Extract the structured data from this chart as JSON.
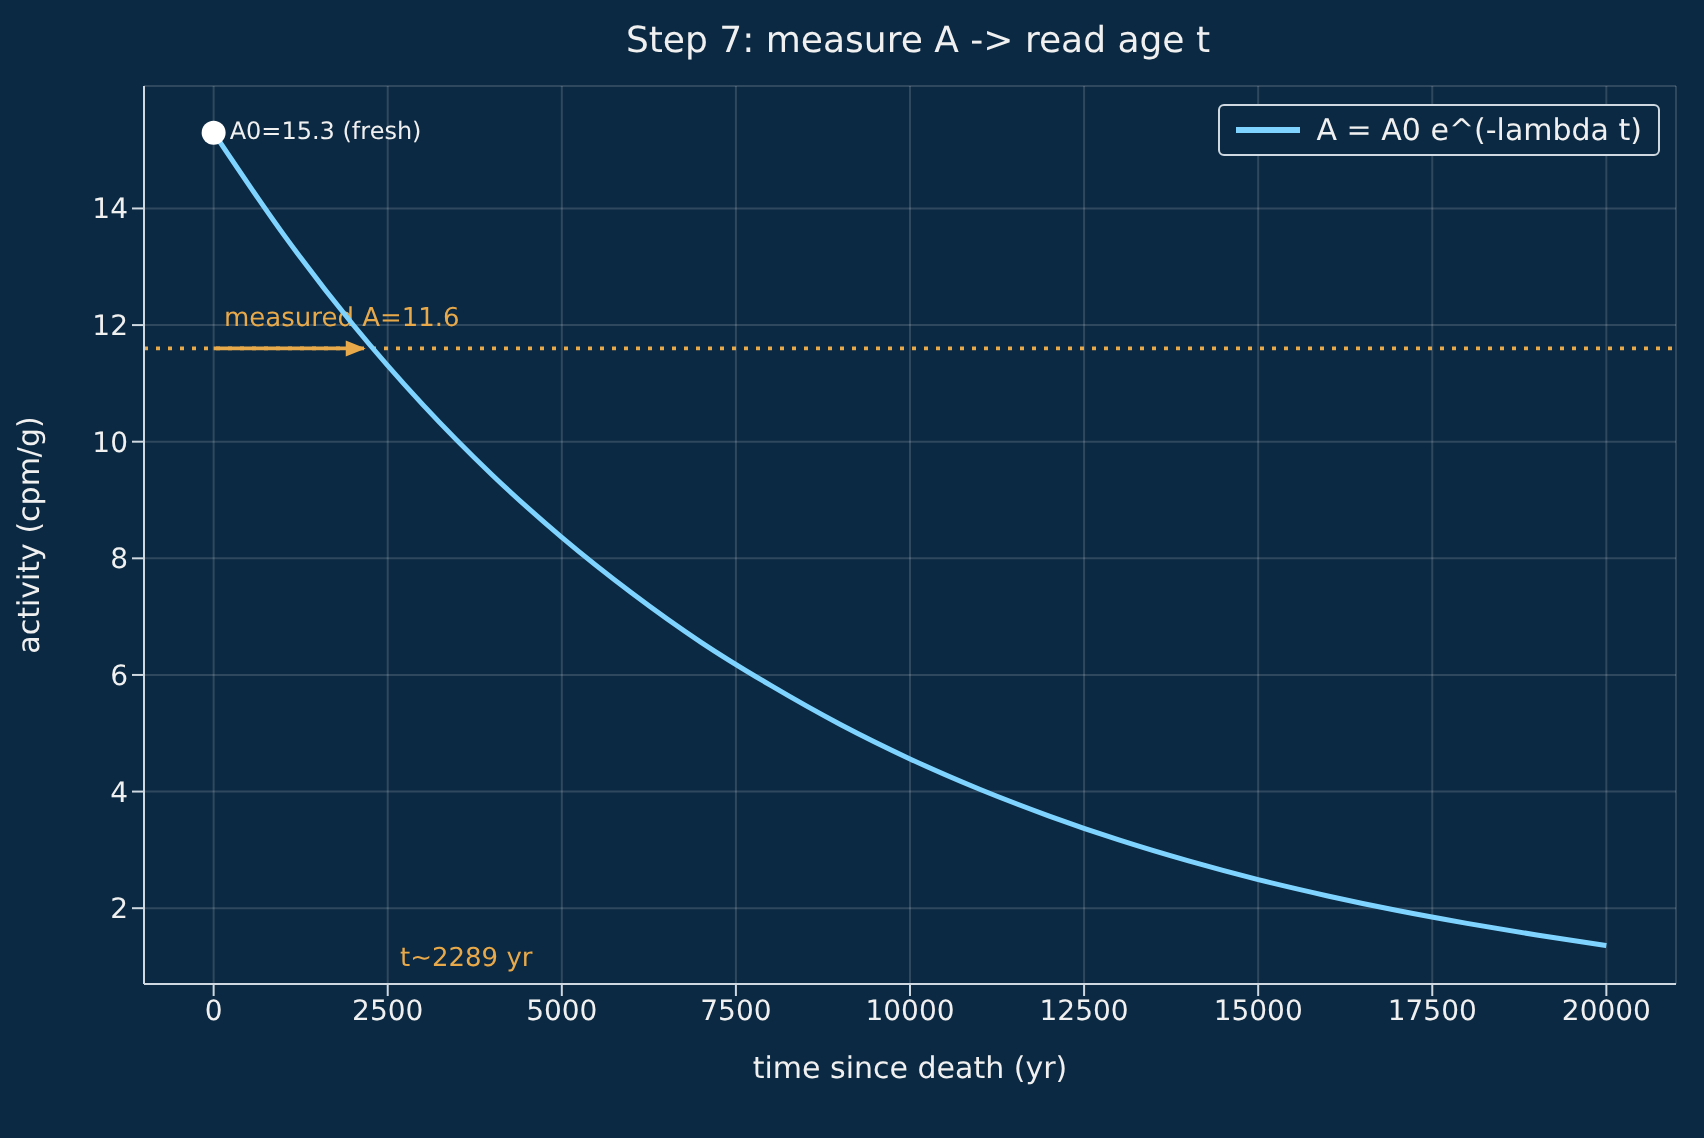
{
  "chart_data": {
    "type": "line",
    "title": "Step 7: measure A -> read age t",
    "xlabel": "time since death (yr)",
    "ylabel": "activity (cpm/g)",
    "series": [
      {
        "name": "A = A0 e^(-lambda t)",
        "color": "#7fd4ff",
        "x": [
          0,
          1000,
          2000,
          3000,
          4000,
          5000,
          6000,
          7000,
          8000,
          9000,
          10000,
          11000,
          12000,
          13000,
          14000,
          15000,
          16000,
          17000,
          18000,
          19000,
          20000
        ],
        "values": [
          15.3,
          13.56,
          12.01,
          10.64,
          9.43,
          8.36,
          7.41,
          6.56,
          5.82,
          5.15,
          4.56,
          4.04,
          3.58,
          3.17,
          2.81,
          2.49,
          2.21,
          1.96,
          1.74,
          1.54,
          1.36
        ]
      },
      {
        "type": "scatter",
        "color": "#ffffff",
        "x": [
          0
        ],
        "values": [
          15.3
        ],
        "marker": "circle"
      }
    ],
    "xlim": [
      -1000,
      21000
    ],
    "xticks": [
      0,
      2500,
      5000,
      7500,
      10000,
      12500,
      15000,
      17500,
      20000
    ],
    "ylim": [
      0.7,
      16.1
    ],
    "yticks": [
      2,
      4,
      6,
      8,
      10,
      12,
      14
    ],
    "ref_lines": [
      {
        "axis": "y",
        "value": 11.6,
        "color": "#e8a94a",
        "line_style": "dotted",
        "label": "measured A=11.6"
      }
    ],
    "annotations": [
      {
        "text": "A0=15.3 (fresh)",
        "x": 0,
        "y": 15.3
      },
      "t~2289 yr"
    ],
    "grid": true,
    "legend": "top right",
    "line_style": "solid"
  }
}
